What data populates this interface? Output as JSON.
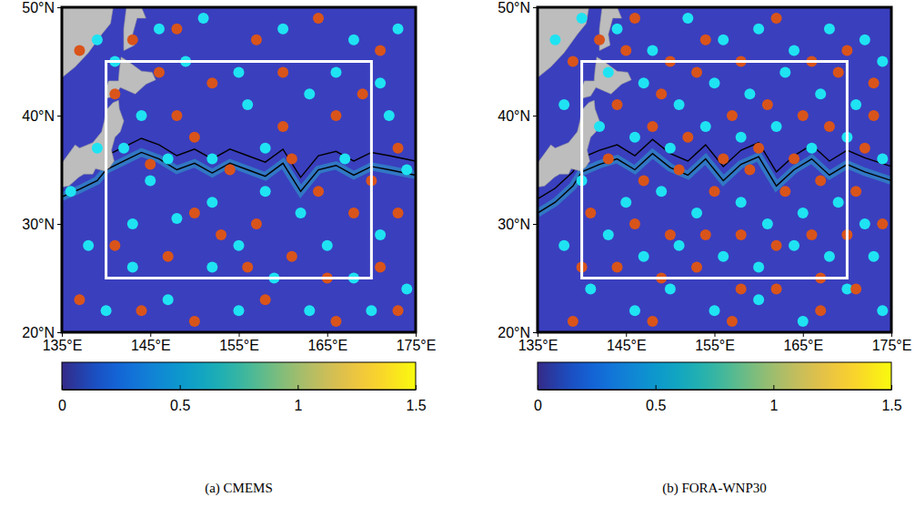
{
  "chart_data": [
    {
      "type": "scatter",
      "title": "(a) CMEMS",
      "xlim": [
        135,
        175
      ],
      "ylim": [
        20,
        50
      ],
      "xticks": [
        {
          "value": 135,
          "label": "135°E"
        },
        {
          "value": 145,
          "label": "145°E"
        },
        {
          "value": 155,
          "label": "155°E"
        },
        {
          "value": 165,
          "label": "165°E"
        },
        {
          "value": 175,
          "label": "175°E"
        }
      ],
      "yticks": [
        {
          "value": 20,
          "label": "20°N"
        },
        {
          "value": 30,
          "label": "30°N"
        },
        {
          "value": 40,
          "label": "40°N"
        },
        {
          "value": 50,
          "label": "50°N"
        }
      ],
      "series": [
        {
          "type": "line",
          "color": "#000000",
          "x": [
            135,
            137,
            139,
            140,
            142,
            144,
            146,
            148,
            150,
            152,
            154,
            156,
            158,
            160,
            162,
            164,
            166,
            168,
            170,
            172,
            175
          ],
          "values": [
            32.5,
            33.2,
            34,
            35,
            35.8,
            36.6,
            36,
            35,
            35.6,
            34.7,
            35.6,
            35,
            34.4,
            35.6,
            33,
            35,
            35.4,
            34.5,
            35.3,
            35,
            34.5
          ]
        },
        {
          "type": "line",
          "color": "#000000",
          "x": [
            135,
            137,
            139,
            140,
            142,
            144,
            146,
            148,
            150,
            152,
            154,
            156,
            158,
            160,
            162,
            164,
            166,
            168,
            170,
            172,
            175
          ],
          "values": [
            33.8,
            34.5,
            35.3,
            36.3,
            37.1,
            37.9,
            37.3,
            36.3,
            36.9,
            36,
            36.9,
            36.3,
            35.7,
            36.9,
            34.3,
            36.3,
            36.7,
            35.8,
            36.6,
            36.3,
            35.8
          ]
        },
        {
          "type": "scatter",
          "color": "#1fe3f2",
          "marker": "circle",
          "x": [
            139,
            141,
            146,
            151,
            160,
            168,
            173,
            149,
            155,
            166,
            171,
            144,
            156,
            163,
            172,
            142,
            147,
            152,
            158,
            167,
            174,
            145,
            152,
            158,
            162,
            143,
            148,
            155,
            165,
            171,
            138,
            143,
            152,
            159,
            168,
            174,
            140,
            147,
            155,
            163,
            170,
            136,
            139
          ],
          "values": [
            47,
            45,
            48,
            49,
            48,
            47,
            48,
            45,
            44,
            44,
            43,
            40,
            41,
            42,
            40,
            37,
            36,
            36,
            37,
            36,
            35,
            34,
            32,
            33,
            31,
            30,
            30.5,
            28,
            28,
            29,
            28,
            26,
            26,
            25,
            25,
            24,
            22,
            23,
            22,
            22,
            22,
            33,
            37
          ]
        },
        {
          "type": "scatter",
          "color": "#d9541a",
          "marker": "circle",
          "x": [
            137,
            143,
            148,
            157,
            164,
            171,
            146,
            152,
            160,
            169,
            148,
            160,
            166,
            173,
            141,
            145,
            150,
            154,
            161,
            164,
            170,
            150,
            157,
            168,
            173,
            141,
            147,
            153,
            161,
            165,
            171,
            137,
            144,
            150,
            158,
            166,
            173,
            156
          ],
          "values": [
            46,
            47,
            48,
            47,
            49,
            46,
            44,
            43,
            44,
            42,
            40,
            39,
            40,
            37,
            42,
            35.5,
            38,
            35,
            36,
            33,
            34,
            31,
            30,
            31,
            31,
            28,
            27,
            29,
            27,
            25,
            26,
            23,
            22,
            21,
            23,
            21,
            22,
            26
          ]
        }
      ],
      "region": {
        "xlim": [
          140,
          170
        ],
        "ylim": [
          25,
          45
        ]
      },
      "land": [
        {
          "x": [
            135,
            135.8,
            136.9,
            137.5,
            138.5,
            138.8,
            139.8,
            140.4,
            140.9,
            140.6,
            141,
            141.6,
            142,
            141.5,
            141.4,
            140.8,
            140,
            139.8,
            139.5,
            138.5,
            137,
            136.5,
            135
          ],
          "y": [
            33.4,
            33.5,
            34.3,
            34.6,
            34.6,
            35.1,
            34.9,
            35.2,
            35.8,
            36.8,
            38,
            38.5,
            39.5,
            40.6,
            41.4,
            41.2,
            40.5,
            39.5,
            38.5,
            37.5,
            37,
            37.3,
            35.6
          ]
        },
        {
          "x": [
            140,
            141,
            141.6,
            143.3,
            144.5,
            145.6,
            145.2,
            144,
            142.5,
            141.7,
            141.5,
            141.4,
            140.3,
            139.9
          ],
          "y": [
            41.6,
            41.8,
            42.6,
            42,
            42.9,
            43.3,
            44,
            44.1,
            45,
            45.4,
            44.2,
            43.2,
            43.2,
            42.3
          ]
        },
        {
          "x": [
            135,
            136.5,
            138,
            139.5,
            140.5,
            140.8,
            135
          ],
          "y": [
            43.5,
            44.5,
            45.8,
            47.5,
            48.5,
            50,
            50
          ]
        },
        {
          "x": [
            142,
            143.2,
            143,
            143.5,
            144.5,
            144,
            142.3,
            142
          ],
          "y": [
            46,
            46.5,
            47.5,
            49,
            49,
            50,
            50,
            48
          ]
        }
      ],
      "colorbar": {
        "range": [
          0,
          1.5
        ],
        "ticks": [
          0,
          0.5,
          1,
          1.5
        ]
      }
    },
    {
      "type": "scatter",
      "title": "(b) FORA-WNP30",
      "xlim": [
        135,
        175
      ],
      "ylim": [
        20,
        50
      ],
      "xticks": [
        {
          "value": 135,
          "label": "135°E"
        },
        {
          "value": 145,
          "label": "145°E"
        },
        {
          "value": 155,
          "label": "155°E"
        },
        {
          "value": 165,
          "label": "165°E"
        },
        {
          "value": 175,
          "label": "175°E"
        }
      ],
      "yticks": [
        {
          "value": 20,
          "label": "20°N"
        },
        {
          "value": 30,
          "label": "30°N"
        },
        {
          "value": 40,
          "label": "40°N"
        },
        {
          "value": 50,
          "label": "50°N"
        }
      ],
      "series": [
        {
          "type": "line",
          "color": "#000000",
          "x": [
            135,
            137,
            139,
            140,
            142,
            144,
            146,
            148,
            150,
            152,
            154,
            156,
            158,
            160,
            162,
            164,
            166,
            168,
            170,
            172,
            175
          ],
          "values": [
            31,
            32,
            33.5,
            34.8,
            35.5,
            36,
            35,
            36.5,
            35.2,
            34.5,
            36,
            34,
            35.5,
            36.2,
            33.5,
            35,
            36,
            34.5,
            35.5,
            34.8,
            34
          ]
        },
        {
          "type": "line",
          "color": "#000000",
          "x": [
            135,
            137,
            139,
            140,
            142,
            144,
            146,
            148,
            150,
            152,
            154,
            156,
            158,
            160,
            162,
            164,
            166,
            168,
            170,
            172,
            175
          ],
          "values": [
            32.3,
            33.3,
            34.8,
            36.1,
            36.8,
            37.3,
            36.3,
            37.8,
            36.5,
            35.8,
            37.3,
            35.3,
            36.8,
            37.5,
            34.8,
            36.3,
            37.3,
            35.8,
            36.8,
            36.1,
            35.3
          ]
        },
        {
          "type": "scatter",
          "color": "#1fe3f2",
          "marker": "circle",
          "x": [
            137,
            140,
            144,
            148,
            152,
            156,
            160,
            164,
            168,
            172,
            174,
            143,
            147,
            151,
            155,
            159,
            163,
            167,
            171,
            138,
            142,
            146,
            150,
            154,
            158,
            162,
            166,
            170,
            174,
            140,
            145,
            149,
            153,
            158,
            161,
            165,
            169,
            172,
            138,
            143,
            147,
            151,
            156,
            160,
            164,
            168,
            173,
            141,
            146,
            150,
            155,
            160,
            165,
            170,
            174
          ],
          "values": [
            47,
            49,
            48,
            46,
            49,
            47,
            48,
            46,
            48,
            47,
            45,
            44,
            43,
            41,
            43,
            42,
            44,
            42,
            41,
            41,
            39,
            38,
            37,
            39,
            38,
            39,
            37,
            38,
            36,
            34,
            32,
            33,
            31,
            32,
            30,
            31,
            32,
            30,
            28,
            29,
            27,
            28,
            27,
            26,
            28,
            27,
            27,
            24,
            22,
            24,
            22,
            23,
            21,
            24,
            22
          ]
        },
        {
          "type": "scatter",
          "color": "#d9541a",
          "marker": "circle",
          "x": [
            139,
            142,
            146,
            150,
            154,
            158,
            162,
            166,
            170,
            173,
            145,
            149,
            153,
            157,
            161,
            165,
            169,
            173,
            144,
            148,
            152,
            156,
            160,
            164,
            168,
            172,
            143,
            147,
            151,
            155,
            159,
            163,
            167,
            171,
            141,
            146,
            150,
            154,
            158,
            162,
            166,
            170,
            174,
            140,
            144,
            149,
            153,
            158,
            162,
            167,
            171,
            139,
            148,
            157,
            167
          ],
          "values": [
            45,
            47,
            49,
            45,
            47,
            45,
            49,
            45,
            46,
            43,
            46,
            42,
            44,
            40,
            41,
            40,
            44,
            40,
            41,
            39,
            38,
            36,
            37,
            36,
            39,
            37,
            36,
            34,
            35,
            33,
            35,
            33,
            34,
            33,
            31,
            30,
            29,
            29,
            29,
            28,
            29,
            29,
            30,
            26,
            26,
            25,
            26,
            24,
            24,
            25,
            24,
            21,
            21,
            21,
            22
          ]
        }
      ],
      "region": {
        "xlim": [
          140,
          170
        ],
        "ylim": [
          25,
          45
        ]
      },
      "land": [
        {
          "x": [
            135,
            135.8,
            136.9,
            137.5,
            138.5,
            138.8,
            139.8,
            140.4,
            140.9,
            140.6,
            141,
            141.6,
            142,
            141.5,
            141.4,
            140.8,
            140,
            139.8,
            139.5,
            138.5,
            137,
            136.5,
            135
          ],
          "y": [
            33.4,
            33.5,
            34.3,
            34.6,
            34.6,
            35.1,
            34.9,
            35.2,
            35.8,
            36.8,
            38,
            38.5,
            39.5,
            40.6,
            41.4,
            41.2,
            40.5,
            39.5,
            38.5,
            37.5,
            37,
            37.3,
            35.6
          ]
        },
        {
          "x": [
            140,
            141,
            141.6,
            143.3,
            144.5,
            145.6,
            145.2,
            144,
            142.5,
            141.7,
            141.5,
            141.4,
            140.3,
            139.9
          ],
          "y": [
            41.6,
            41.8,
            42.6,
            42,
            42.9,
            43.3,
            44,
            44.1,
            45,
            45.4,
            44.2,
            43.2,
            43.2,
            42.3
          ]
        },
        {
          "x": [
            135,
            136.5,
            138,
            139.5,
            140.5,
            140.8,
            135
          ],
          "y": [
            43.5,
            44.5,
            45.8,
            47.5,
            48.5,
            50,
            50
          ]
        },
        {
          "x": [
            142,
            143.2,
            143,
            143.5,
            144.5,
            144,
            142.3,
            142
          ],
          "y": [
            46,
            46.5,
            47.5,
            49,
            49,
            50,
            50,
            48
          ]
        }
      ],
      "colorbar": {
        "range": [
          0,
          1.5
        ],
        "ticks": [
          0,
          0.5,
          1,
          1.5
        ]
      }
    }
  ]
}
